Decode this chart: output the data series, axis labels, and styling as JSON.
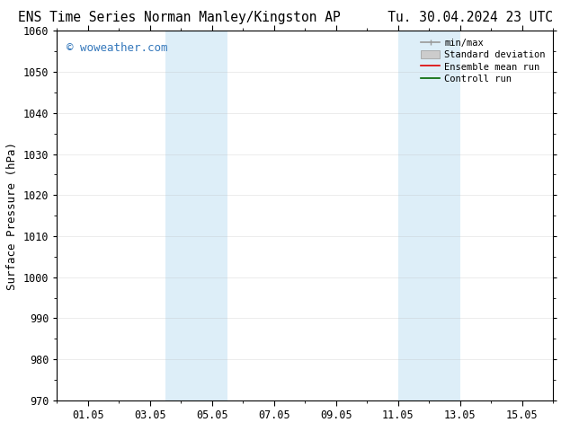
{
  "title_left": "ENS Time Series Norman Manley/Kingston AP",
  "title_right": "Tu. 30.04.2024 23 UTC",
  "ylabel": "Surface Pressure (hPa)",
  "xlim": [
    0,
    16
  ],
  "ylim": [
    970,
    1060
  ],
  "yticks": [
    970,
    980,
    990,
    1000,
    1010,
    1020,
    1030,
    1040,
    1050,
    1060
  ],
  "xtick_labels": [
    "01.05",
    "03.05",
    "05.05",
    "07.05",
    "09.05",
    "11.05",
    "13.05",
    "15.05"
  ],
  "xtick_positions": [
    1,
    3,
    5,
    7,
    9,
    11,
    13,
    15
  ],
  "shaded_bands": [
    {
      "x_start": 3.5,
      "x_end": 5.5
    },
    {
      "x_start": 11.0,
      "x_end": 13.0
    }
  ],
  "shaded_color": "#ddeef8",
  "background_color": "#ffffff",
  "watermark_text": "© woweather.com",
  "watermark_color": "#3377bb",
  "legend_entries": [
    {
      "label": "min/max",
      "color": "#999999",
      "lw": 1.2
    },
    {
      "label": "Standard deviation",
      "color": "#cccccc",
      "lw": 5
    },
    {
      "label": "Ensemble mean run",
      "color": "#dd0000",
      "lw": 1.2
    },
    {
      "label": "Controll run",
      "color": "#006600",
      "lw": 1.2
    }
  ],
  "title_fontsize": 10.5,
  "tick_fontsize": 8.5,
  "ylabel_fontsize": 9,
  "legend_fontsize": 7.5,
  "watermark_fontsize": 9,
  "grid_color": "#bbbbbb",
  "grid_linestyle": "-",
  "grid_alpha": 0.4,
  "grid_lw": 0.5
}
